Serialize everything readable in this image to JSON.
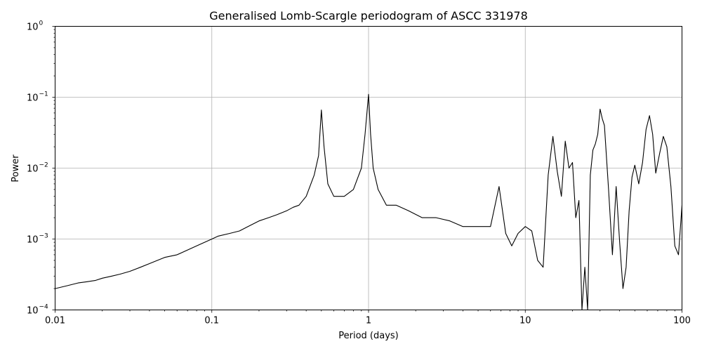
{
  "chart_data": {
    "type": "line",
    "title": "Generalised Lomb-Scargle periodogram of ASCC 331978",
    "xlabel": "Period (days)",
    "ylabel": "Power",
    "xscale": "log",
    "yscale": "log",
    "xlim": [
      0.01,
      100
    ],
    "ylim": [
      0.0001,
      1
    ],
    "grid": true,
    "x_ticks": [
      {
        "value": 0.01,
        "label": "0.01"
      },
      {
        "value": 0.1,
        "label": "0.1"
      },
      {
        "value": 1,
        "label": "1"
      },
      {
        "value": 10,
        "label": "10"
      },
      {
        "value": 100,
        "label": "100"
      }
    ],
    "y_ticks": [
      {
        "value": 0.0001,
        "base": "10",
        "exp": "−4"
      },
      {
        "value": 0.001,
        "base": "10",
        "exp": "−3"
      },
      {
        "value": 0.01,
        "base": "10",
        "exp": "−2"
      },
      {
        "value": 0.1,
        "base": "10",
        "exp": "−1"
      },
      {
        "value": 1,
        "base": "10",
        "exp": "0"
      }
    ],
    "line_color": "#000000",
    "series": [
      {
        "x": [
          0.01,
          0.012,
          0.014,
          0.016,
          0.018,
          0.02,
          0.023,
          0.026,
          0.03,
          0.035,
          0.04,
          0.045,
          0.05,
          0.06,
          0.07,
          0.08,
          0.09,
          0.1,
          0.11,
          0.13,
          0.15,
          0.17,
          0.2,
          0.23,
          0.26,
          0.3,
          0.33,
          0.36,
          0.4,
          0.45,
          0.48,
          0.5,
          0.52,
          0.55,
          0.6,
          0.65,
          0.7,
          0.8,
          0.9,
          0.95,
          1.0,
          1.03,
          1.07,
          1.15,
          1.3,
          1.5,
          1.8,
          2.2,
          2.7,
          3.3,
          4.0,
          5.0,
          6.0,
          6.8,
          7.5,
          8.2,
          9.0,
          10.0,
          11.0,
          12.0,
          13.0,
          14.0,
          15.0,
          16.0,
          17.0,
          18.0,
          19.0,
          20.0,
          21.0,
          22.0,
          23.0,
          24.0,
          25.0,
          26.0,
          27.0,
          28.0,
          29.0,
          30.0,
          31.0,
          32.0,
          34.0,
          36.0,
          38.0,
          40.0,
          42.0,
          44.0,
          46.0,
          48.0,
          50.0,
          53.0,
          56.0,
          59.0,
          62.0,
          65.0,
          68.0,
          72.0,
          76.0,
          80.0,
          85.0,
          90.0,
          95.0,
          100.0
        ],
        "y": [
          0.0002,
          0.00022,
          0.00024,
          0.00025,
          0.00026,
          0.00028,
          0.0003,
          0.00032,
          0.00035,
          0.0004,
          0.00045,
          0.0005,
          0.00055,
          0.0006,
          0.0007,
          0.0008,
          0.0009,
          0.001,
          0.0011,
          0.0012,
          0.0013,
          0.0015,
          0.0018,
          0.002,
          0.0022,
          0.0025,
          0.0028,
          0.003,
          0.004,
          0.008,
          0.015,
          0.066,
          0.02,
          0.006,
          0.004,
          0.004,
          0.004,
          0.005,
          0.01,
          0.03,
          0.11,
          0.03,
          0.01,
          0.005,
          0.003,
          0.003,
          0.0025,
          0.002,
          0.002,
          0.0018,
          0.0015,
          0.0015,
          0.0015,
          0.0055,
          0.0012,
          0.0008,
          0.0012,
          0.0015,
          0.0013,
          0.0005,
          0.0004,
          0.008,
          0.028,
          0.009,
          0.004,
          0.024,
          0.01,
          0.012,
          0.002,
          0.0035,
          0.0001,
          0.0004,
          0.0001,
          0.008,
          0.018,
          0.022,
          0.03,
          0.068,
          0.05,
          0.04,
          0.005,
          0.0006,
          0.0055,
          0.0009,
          0.0002,
          0.0004,
          0.0025,
          0.0075,
          0.011,
          0.006,
          0.012,
          0.035,
          0.055,
          0.03,
          0.0085,
          0.016,
          0.028,
          0.02,
          0.0055,
          0.0008,
          0.0006,
          0.003
        ]
      }
    ]
  }
}
